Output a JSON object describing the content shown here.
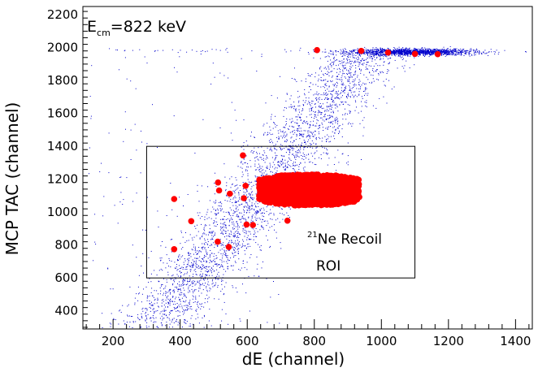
{
  "chart_data": {
    "type": "scatter",
    "xlabel": "dE (channel)",
    "ylabel": "MCP TAC (channel)",
    "xlim": [
      110,
      1450
    ],
    "ylim": [
      290,
      2250
    ],
    "xticks": [
      200,
      400,
      600,
      800,
      1000,
      1200,
      1400
    ],
    "yticks": [
      400,
      600,
      800,
      1000,
      1200,
      1400,
      1600,
      1800,
      2000,
      2200
    ],
    "grid": false,
    "annotations": {
      "energy": {
        "prefix": "E",
        "subscript": "cm",
        "value": "=822 keV"
      },
      "recoil": {
        "superscript": "21",
        "text": "Ne Recoil"
      },
      "roi_label": "ROI"
    },
    "roi": {
      "x": [
        300,
        1100
      ],
      "y": [
        600,
        1400
      ]
    },
    "colors": {
      "background": "#0000cc",
      "recoil": "#ff0000"
    },
    "background_regions": [
      {
        "name": "beam-blob",
        "cx": 1090,
        "cy": 1975,
        "sx": 95,
        "sy": 10,
        "n": 1600
      },
      {
        "name": "beam-line",
        "x0": 150,
        "x1": 950,
        "cy": 1985,
        "sy": 6,
        "n": 35
      },
      {
        "name": "diagonal-band",
        "x_start": 330,
        "y_start": 300,
        "x_end": 950,
        "y_end": 1980,
        "width": 65,
        "n": 3000
      },
      {
        "name": "lower-left-scatter",
        "x0": 120,
        "x1": 700,
        "y0": 300,
        "y1": 2000,
        "n": 160
      }
    ],
    "recoil_cluster": {
      "x0": 635,
      "x1": 935,
      "y0": 1040,
      "y1": 1230,
      "n": 1400
    },
    "recoil_isolated": [
      {
        "x": 808,
        "y": 1985
      },
      {
        "x": 940,
        "y": 1980
      },
      {
        "x": 1020,
        "y": 1970
      },
      {
        "x": 1100,
        "y": 1962
      },
      {
        "x": 1168,
        "y": 1960
      },
      {
        "x": 587,
        "y": 1345
      },
      {
        "x": 513,
        "y": 1180
      },
      {
        "x": 516,
        "y": 1132
      },
      {
        "x": 548,
        "y": 1112
      },
      {
        "x": 382,
        "y": 1080
      },
      {
        "x": 590,
        "y": 1085
      },
      {
        "x": 595,
        "y": 1160
      },
      {
        "x": 433,
        "y": 945
      },
      {
        "x": 720,
        "y": 948
      },
      {
        "x": 598,
        "y": 925
      },
      {
        "x": 617,
        "y": 922
      },
      {
        "x": 512,
        "y": 820
      },
      {
        "x": 545,
        "y": 788
      },
      {
        "x": 382,
        "y": 775
      },
      {
        "x": 665,
        "y": 1080
      },
      {
        "x": 700,
        "y": 1070
      }
    ]
  }
}
